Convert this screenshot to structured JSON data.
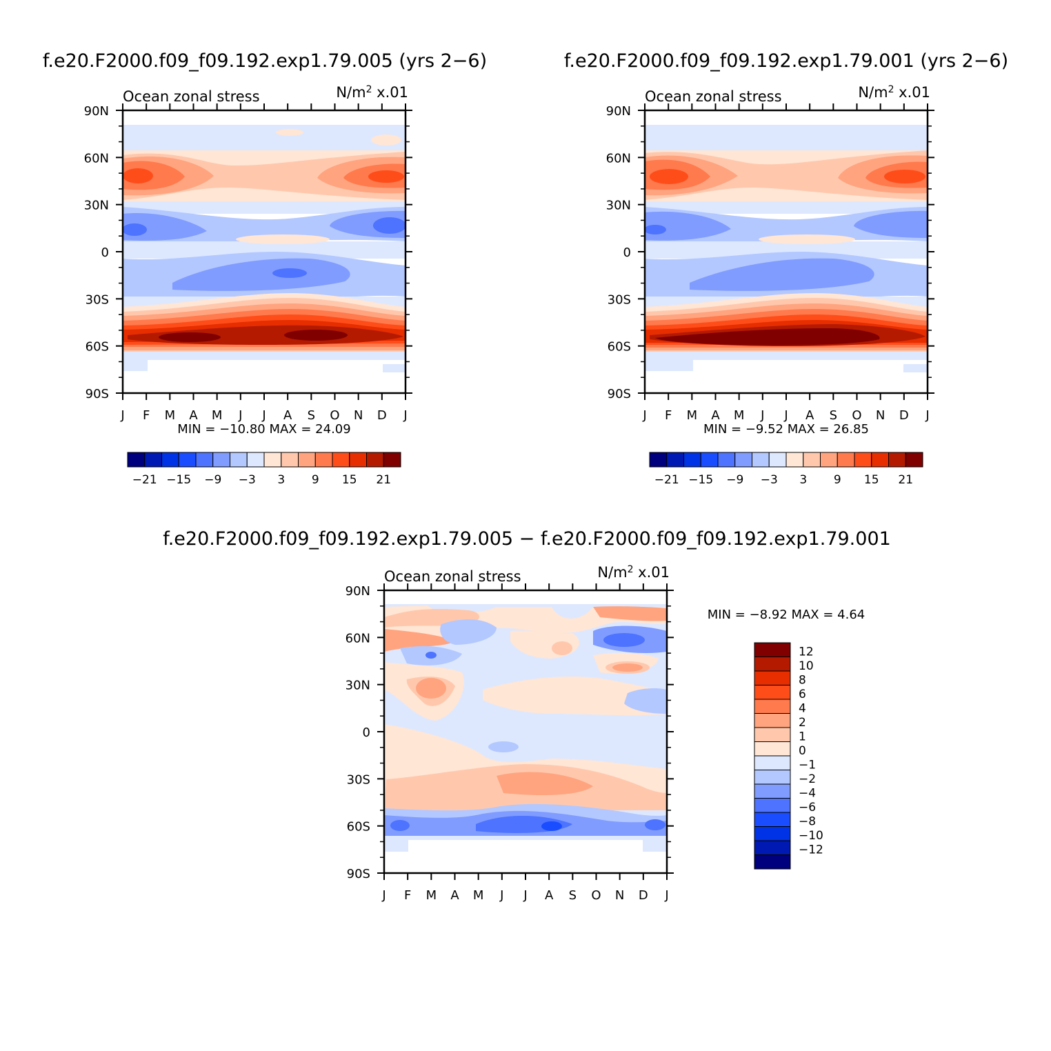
{
  "months": [
    "J",
    "F",
    "M",
    "A",
    "M",
    "J",
    "J",
    "A",
    "S",
    "O",
    "N",
    "D",
    "J"
  ],
  "lat_ticks": [
    "90N",
    "60N",
    "30N",
    "0",
    "30S",
    "60S",
    "90S"
  ],
  "panels": [
    {
      "id": "p1",
      "title": "f.e20.F2000.f09_f09.192.exp1.79.005 (yrs 2−6)",
      "subtitle_left": "Ocean zonal stress",
      "subtitle_right_base": "N/m",
      "subtitle_right_sup": "2",
      "subtitle_right_suffix": " x.01",
      "stats": "MIN = −10.80 MAX =   24.09",
      "min": -10.8,
      "max": 24.09
    },
    {
      "id": "p2",
      "title": "f.e20.F2000.f09_f09.192.exp1.79.001 (yrs 2−6)",
      "subtitle_left": "Ocean zonal stress",
      "subtitle_right_base": "N/m",
      "subtitle_right_sup": "2",
      "subtitle_right_suffix": " x.01",
      "stats": "MIN =   −9.52 MAX =   26.85",
      "min": -9.52,
      "max": 26.85
    },
    {
      "id": "p3",
      "title": "f.e20.F2000.f09_f09.192.exp1.79.005 − f.e20.F2000.f09_f09.192.exp1.79.001",
      "subtitle_left": "Ocean zonal stress",
      "subtitle_right_base": "N/m",
      "subtitle_right_sup": "2",
      "subtitle_right_suffix": " x.01",
      "stats": "MIN =   −8.92 MAX =    4.64",
      "min": -8.92,
      "max": 4.64
    }
  ],
  "colorbar_top": {
    "colors": [
      "#00007f",
      "#0019b3",
      "#0033e6",
      "#1a4dff",
      "#4d73ff",
      "#809cff",
      "#b3c8ff",
      "#dde8ff",
      "#ffe6d5",
      "#ffc8ad",
      "#ffa47f",
      "#ff7a4d",
      "#ff4d1a",
      "#e62e00",
      "#b31a00",
      "#800000"
    ],
    "labels": [
      "−21",
      "−15",
      "−9",
      "−3",
      "3",
      "9",
      "15",
      "21"
    ]
  },
  "colorbar_diff": {
    "colors": [
      "#800000",
      "#b31a00",
      "#e62e00",
      "#ff4d1a",
      "#ff7a4d",
      "#ffa47f",
      "#ffc8ad",
      "#ffe6d5",
      "#dde8ff",
      "#b3c8ff",
      "#809cff",
      "#4d73ff",
      "#1a4dff",
      "#0033e6",
      "#0019b3",
      "#00007f"
    ],
    "labels": [
      "12",
      "10",
      "8",
      "6",
      "4",
      "2",
      "1",
      "0",
      "−1",
      "−2",
      "−4",
      "−6",
      "−8",
      "−10",
      "−12"
    ]
  },
  "chart_data": [
    {
      "type": "heatmap",
      "title": "f.e20.F2000.f09_f09.192.exp1.79.005 (yrs 2−6)",
      "variable": "Ocean zonal stress",
      "units": "N/m2 x.01",
      "x": [
        "J",
        "F",
        "M",
        "A",
        "M",
        "J",
        "J",
        "A",
        "S",
        "O",
        "N",
        "D",
        "J"
      ],
      "y_range": [
        -90,
        90
      ],
      "bands": [
        {
          "lat_from": -78,
          "lat_to": -65,
          "value": -1
        },
        {
          "lat_from": -65,
          "lat_to": -50,
          "value": 20
        },
        {
          "lat_from": -50,
          "lat_to": -40,
          "value": 9
        },
        {
          "lat_from": -40,
          "lat_to": -30,
          "value": 1
        },
        {
          "lat_from": -30,
          "lat_to": -15,
          "value": -5
        },
        {
          "lat_from": -15,
          "lat_to": 5,
          "value": -1.5
        },
        {
          "lat_from": 5,
          "lat_to": 9,
          "value": 1
        },
        {
          "lat_from": 9,
          "lat_to": 27,
          "value": -6
        },
        {
          "lat_from": 27,
          "lat_to": 35,
          "value": -1
        },
        {
          "lat_from": 35,
          "lat_to": 60,
          "value": 10
        },
        {
          "lat_from": 60,
          "lat_to": 80,
          "value": -1
        }
      ],
      "min": -10.8,
      "max": 24.09
    },
    {
      "type": "heatmap",
      "title": "f.e20.F2000.f09_f09.192.exp1.79.001 (yrs 2−6)",
      "variable": "Ocean zonal stress",
      "units": "N/m2 x.01",
      "x": [
        "J",
        "F",
        "M",
        "A",
        "M",
        "J",
        "J",
        "A",
        "S",
        "O",
        "N",
        "D",
        "J"
      ],
      "y_range": [
        -90,
        90
      ],
      "bands": [
        {
          "lat_from": -78,
          "lat_to": -65,
          "value": -1
        },
        {
          "lat_from": -65,
          "lat_to": -50,
          "value": 22
        },
        {
          "lat_from": -50,
          "lat_to": -40,
          "value": 9
        },
        {
          "lat_from": -40,
          "lat_to": -30,
          "value": 1
        },
        {
          "lat_from": -30,
          "lat_to": -15,
          "value": -5
        },
        {
          "lat_from": -15,
          "lat_to": 5,
          "value": -1.5
        },
        {
          "lat_from": 5,
          "lat_to": 9,
          "value": 1
        },
        {
          "lat_from": 9,
          "lat_to": 27,
          "value": -6
        },
        {
          "lat_from": 27,
          "lat_to": 35,
          "value": -1
        },
        {
          "lat_from": 35,
          "lat_to": 60,
          "value": 10
        },
        {
          "lat_from": 60,
          "lat_to": 80,
          "value": -1
        }
      ],
      "min": -9.52,
      "max": 26.85
    },
    {
      "type": "heatmap",
      "title": "f.e20.F2000.f09_f09.192.exp1.79.005 − f.e20.F2000.f09_f09.192.exp1.79.001",
      "variable": "Ocean zonal stress",
      "units": "N/m2 x.01",
      "x": [
        "J",
        "F",
        "M",
        "A",
        "M",
        "J",
        "J",
        "A",
        "S",
        "O",
        "N",
        "D",
        "J"
      ],
      "y_range": [
        -90,
        90
      ],
      "bands": [
        {
          "lat_from": -78,
          "lat_to": -68,
          "value": -0.5
        },
        {
          "lat_from": -68,
          "lat_to": -52,
          "value": -4
        },
        {
          "lat_from": -52,
          "lat_to": -45,
          "value": -0.5
        },
        {
          "lat_from": -45,
          "lat_to": -25,
          "value": 1.5
        },
        {
          "lat_from": -25,
          "lat_to": -5,
          "value": 0.5
        },
        {
          "lat_from": -5,
          "lat_to": 25,
          "value": -0.5
        },
        {
          "lat_from": 25,
          "lat_to": 45,
          "value": 0.5
        },
        {
          "lat_from": 45,
          "lat_to": 65,
          "value": -1.5
        },
        {
          "lat_from": 65,
          "lat_to": 80,
          "value": 1
        }
      ],
      "min": -8.92,
      "max": 4.64
    }
  ]
}
